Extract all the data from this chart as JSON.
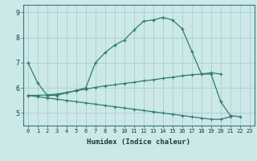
{
  "xlabel": "Humidex (Indice chaleur)",
  "x": [
    0,
    1,
    2,
    3,
    4,
    5,
    6,
    7,
    8,
    9,
    10,
    11,
    12,
    13,
    14,
    15,
    16,
    17,
    18,
    19,
    20,
    21,
    22,
    23
  ],
  "line1": [
    7.0,
    6.2,
    5.7,
    5.7,
    5.8,
    5.9,
    6.0,
    7.0,
    7.4,
    7.7,
    7.9,
    8.3,
    8.65,
    8.7,
    8.8,
    8.7,
    8.35,
    7.45,
    6.55,
    6.55,
    5.45,
    4.9,
    4.85,
    null
  ],
  "line2": [
    5.7,
    5.7,
    5.72,
    5.75,
    5.82,
    5.88,
    5.95,
    6.02,
    6.08,
    6.12,
    6.18,
    6.22,
    6.28,
    6.32,
    6.38,
    6.42,
    6.48,
    6.52,
    6.55,
    6.6,
    6.55,
    null,
    null,
    null
  ],
  "line3": [
    5.7,
    5.65,
    5.6,
    5.55,
    5.5,
    5.45,
    5.4,
    5.35,
    5.3,
    5.25,
    5.2,
    5.15,
    5.1,
    5.05,
    5.0,
    4.95,
    4.9,
    4.85,
    4.8,
    4.75,
    4.75,
    4.85,
    null,
    null
  ],
  "color": "#2e7d6e",
  "bg_color": "#cce8e8",
  "grid_color": "#aacfcf",
  "ylim": [
    4.5,
    9.3
  ],
  "yticks": [
    5,
    6,
    7,
    8,
    9
  ]
}
